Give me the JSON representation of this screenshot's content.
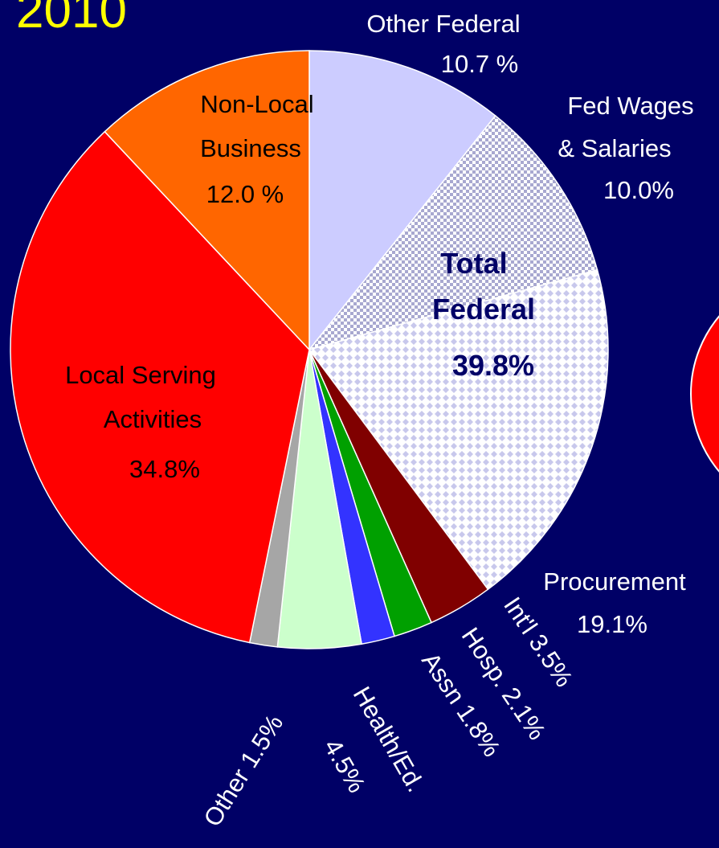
{
  "chart_data": {
    "type": "pie",
    "title": "2010",
    "categories": [
      "Other Federal",
      "Fed Wages & Salaries",
      "Procurement",
      "Int'l",
      "Hosp.",
      "Assn",
      "Health/Ed.",
      "Other",
      "Local Serving Activities",
      "Non-Local Business"
    ],
    "values": [
      10.7,
      10.0,
      19.1,
      3.5,
      2.1,
      1.8,
      4.5,
      1.5,
      34.8,
      12.0
    ],
    "value_labels": [
      "10.7 %",
      "10.0%",
      "19.1%",
      "3.5%",
      "2.1%",
      "1.8%",
      "4.5%",
      "1.5%",
      "34.8%",
      "12.0 %"
    ],
    "colors": [
      "#ccccff",
      "#b8b8dd",
      "#ddddf5",
      "#800000",
      "#00a000",
      "#3333ff",
      "#ccffcc",
      "#a6a6a6",
      "#ff0000",
      "#ff6600"
    ],
    "annotation": [
      "Total",
      "Federal",
      "39.8%"
    ]
  }
}
